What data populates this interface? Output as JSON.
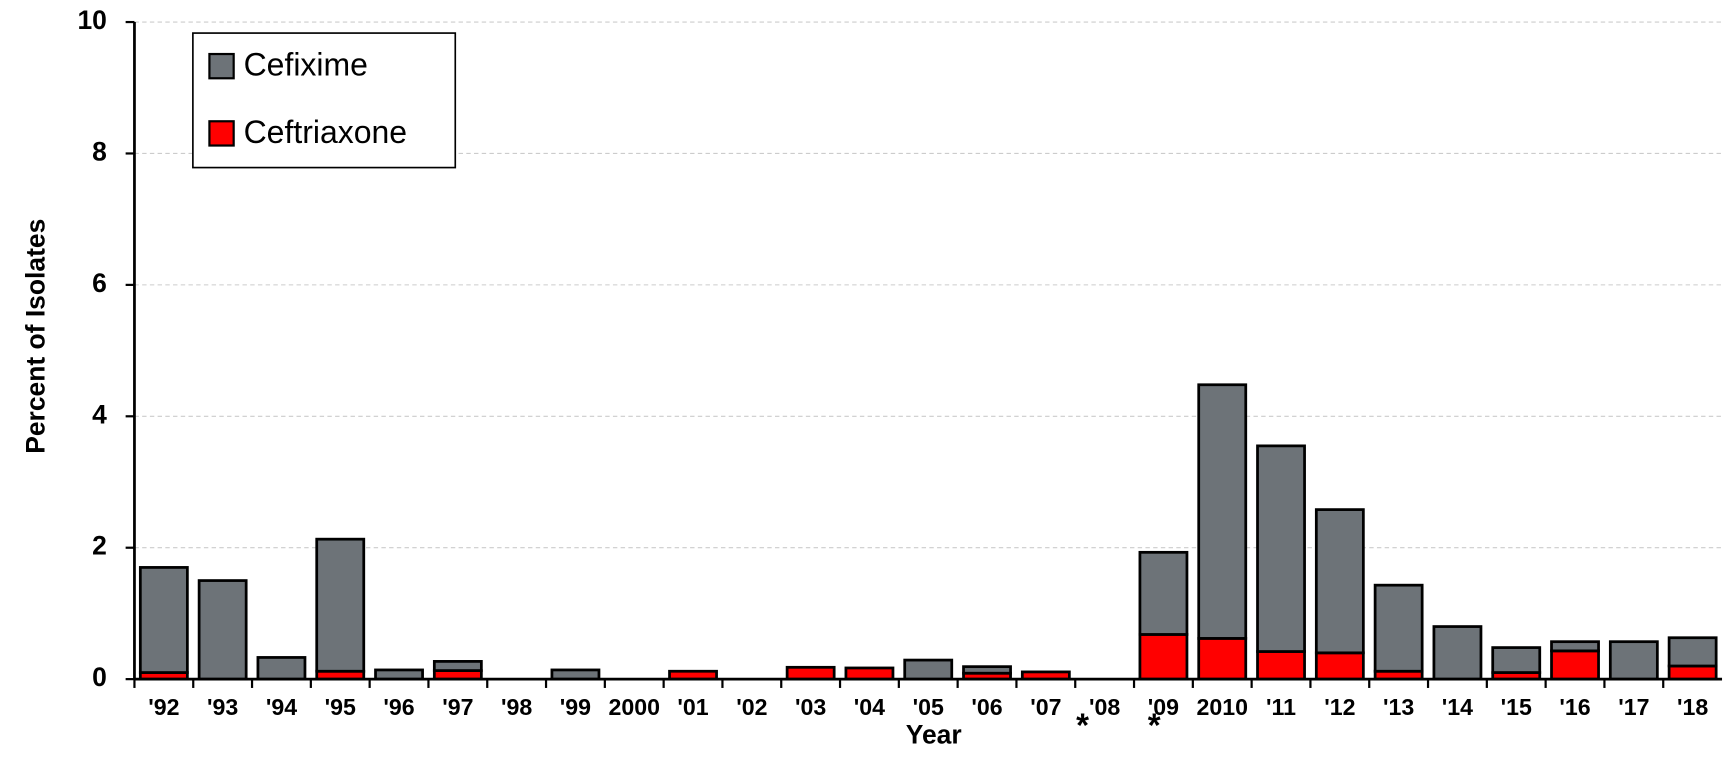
{
  "chart_data": {
    "type": "stacked_bar",
    "x_label": "Year",
    "y_label": "Percent of Isolates",
    "categories": [
      "'92",
      "'93",
      "'94",
      "'95",
      "'96",
      "'97",
      "'98",
      "'99",
      "2000",
      "'01",
      "'02",
      "'03",
      "'04",
      "'05",
      "'06",
      "'07",
      "'08",
      "'09",
      "2010",
      "'11",
      "'12",
      "'13",
      "'14",
      "'15",
      "'16",
      "'17",
      "'18"
    ],
    "series": [
      {
        "name": "Ceftriaxone",
        "color": "#ff0000",
        "values": [
          0.1,
          0,
          0,
          0.12,
          0,
          0.13,
          0,
          0,
          0,
          0.12,
          0,
          0.18,
          0.17,
          0,
          0.09,
          0.11,
          0,
          0.68,
          0.62,
          0.42,
          0.4,
          0.12,
          0,
          0.1,
          0.43,
          0,
          0.2
        ]
      },
      {
        "name": "Cefixime",
        "color": "#6d7378",
        "values": [
          1.6,
          1.5,
          0.33,
          2.01,
          0.14,
          0.14,
          0,
          0.14,
          0,
          0,
          0,
          0,
          0,
          0.29,
          0.1,
          0,
          0,
          1.25,
          3.86,
          3.13,
          2.18,
          1.31,
          0.8,
          0.38,
          0.14,
          0.57,
          0.43
        ]
      }
    ],
    "annotations": [
      "*",
      "*"
    ],
    "ylim": [
      0,
      10
    ],
    "yticks": [
      0,
      2,
      4,
      6,
      8,
      10
    ],
    "grid": true,
    "legend": "upper left"
  }
}
